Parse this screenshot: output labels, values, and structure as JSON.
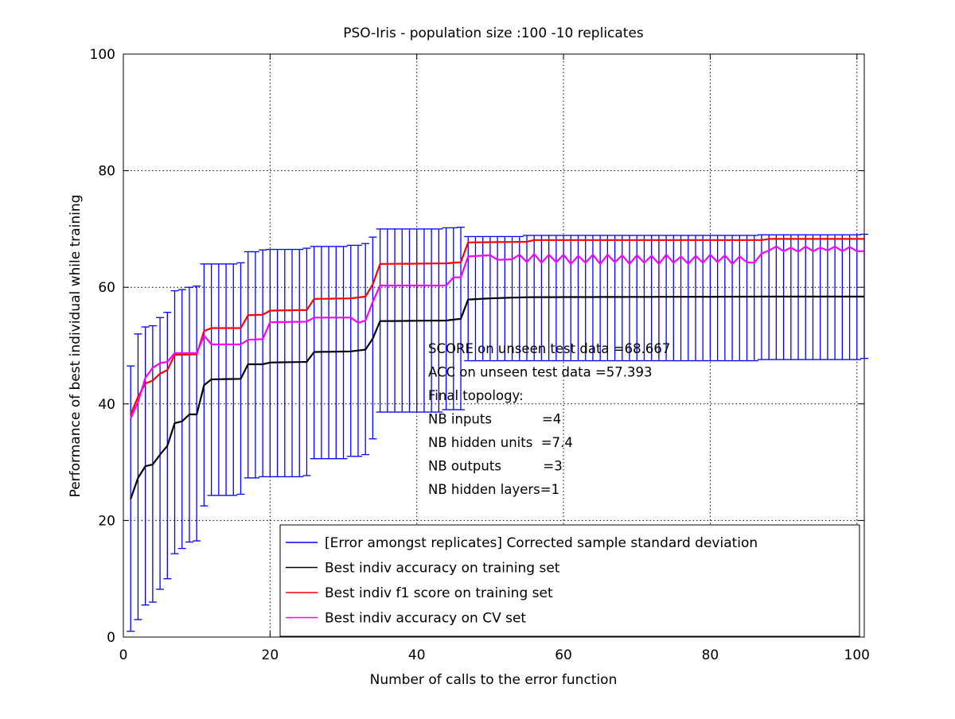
{
  "chart_data": {
    "type": "line",
    "title": "PSO-Iris - population size :100 -10 replicates",
    "xlabel": "Number of calls to the error function",
    "ylabel": "Performance of best individual while training",
    "xlim": [
      0,
      101
    ],
    "ylim": [
      0,
      100
    ],
    "xticks": [
      0,
      20,
      40,
      60,
      80,
      100
    ],
    "yticks": [
      0,
      20,
      40,
      60,
      80,
      100
    ],
    "grid": true,
    "legend_position": "bottom-right",
    "error_bars": {
      "name": "[Error amongst replicates] Corrected sample standard deviation",
      "color": "#0000ff",
      "keypoints": [
        [
          1,
          1,
          46.5
        ],
        [
          2,
          3,
          52
        ],
        [
          3,
          5.5,
          53.2
        ],
        [
          4,
          6,
          53.4
        ],
        [
          5,
          8.2,
          54.8
        ],
        [
          6,
          10,
          55.7
        ],
        [
          7,
          14.3,
          59.4
        ],
        [
          8,
          15.2,
          59.6
        ],
        [
          9,
          16.3,
          60
        ],
        [
          10,
          16.5,
          60.2
        ],
        [
          11,
          22.5,
          64
        ],
        [
          12,
          24.3,
          64
        ],
        [
          16,
          24.5,
          64.2
        ],
        [
          17,
          27.3,
          66.1
        ],
        [
          19,
          27.5,
          66.4
        ],
        [
          20,
          27.5,
          66.5
        ],
        [
          25,
          27.7,
          66.7
        ],
        [
          26,
          30.6,
          67
        ],
        [
          31,
          31,
          67.2
        ],
        [
          33,
          31.3,
          67.5
        ],
        [
          34,
          34,
          68.6
        ],
        [
          35,
          38.6,
          70
        ],
        [
          44,
          39,
          70.2
        ],
        [
          46,
          39,
          70.3
        ],
        [
          47,
          47.4,
          68.7
        ],
        [
          55,
          47.4,
          68.9
        ],
        [
          87,
          47.6,
          69
        ],
        [
          101,
          47.8,
          69.1
        ]
      ]
    },
    "series": [
      {
        "name": "Best indiv accuracy on training set",
        "color": "#000000",
        "keypoints": [
          [
            1,
            23.7
          ],
          [
            2,
            27.3
          ],
          [
            3,
            29.3
          ],
          [
            4,
            29.6
          ],
          [
            5,
            31.3
          ],
          [
            6,
            32.8
          ],
          [
            7,
            36.7
          ],
          [
            8,
            37
          ],
          [
            9,
            38.2
          ],
          [
            10,
            38.2
          ],
          [
            11,
            43.2
          ],
          [
            12,
            44.2
          ],
          [
            16,
            44.3
          ],
          [
            17,
            46.8
          ],
          [
            19,
            46.8
          ],
          [
            20,
            47.1
          ],
          [
            25,
            47.2
          ],
          [
            26,
            48.9
          ],
          [
            31,
            49
          ],
          [
            33,
            49.3
          ],
          [
            34,
            51.2
          ],
          [
            35,
            54.2
          ],
          [
            44,
            54.3
          ],
          [
            46,
            54.6
          ],
          [
            47,
            57.9
          ],
          [
            50,
            58.1
          ],
          [
            55,
            58.3
          ],
          [
            87,
            58.4
          ],
          [
            101,
            58.4
          ]
        ]
      },
      {
        "name": "Best indiv f1 score on training set",
        "color": "#ff0000",
        "keypoints": [
          [
            1,
            38.2
          ],
          [
            2,
            41.2
          ],
          [
            3,
            43.5
          ],
          [
            4,
            44
          ],
          [
            5,
            45.2
          ],
          [
            6,
            45.8
          ],
          [
            7,
            48.4
          ],
          [
            10,
            48.5
          ],
          [
            11,
            52.5
          ],
          [
            12,
            53
          ],
          [
            16,
            53
          ],
          [
            17,
            55.2
          ],
          [
            19,
            55.3
          ],
          [
            20,
            56
          ],
          [
            25,
            56.1
          ],
          [
            26,
            58
          ],
          [
            31,
            58.1
          ],
          [
            33,
            58.4
          ],
          [
            34,
            60.5
          ],
          [
            35,
            64
          ],
          [
            44,
            64.1
          ],
          [
            46,
            64.3
          ],
          [
            47,
            67.7
          ],
          [
            55,
            67.8
          ],
          [
            56,
            68.1
          ],
          [
            87,
            68.1
          ],
          [
            88,
            68.3
          ],
          [
            101,
            68.3
          ]
        ]
      },
      {
        "name": "Best indiv accuracy on CV set",
        "color": "#ff00ff",
        "keypoints": [
          [
            1,
            37.5
          ],
          [
            2,
            40.3
          ],
          [
            3,
            44.5
          ],
          [
            4,
            46.2
          ],
          [
            5,
            47
          ],
          [
            6,
            47.2
          ],
          [
            7,
            48.7
          ],
          [
            10,
            48.7
          ],
          [
            11,
            51.7
          ],
          [
            12,
            50.2
          ],
          [
            16,
            50.2
          ],
          [
            17,
            51
          ],
          [
            19,
            51.1
          ],
          [
            20,
            54
          ],
          [
            25,
            54.1
          ],
          [
            26,
            54.8
          ],
          [
            31,
            54.8
          ],
          [
            32,
            53.9
          ],
          [
            33,
            54.3
          ],
          [
            34,
            57.5
          ],
          [
            35,
            60.3
          ],
          [
            44,
            60.3
          ],
          [
            45,
            61.7
          ],
          [
            46,
            61.7
          ],
          [
            47,
            65.3
          ],
          [
            50,
            65.5
          ],
          [
            51,
            64.7
          ],
          [
            53,
            64.8
          ],
          [
            54,
            65.6
          ],
          [
            55,
            64.3
          ],
          [
            56,
            65.7
          ],
          [
            57,
            64.2
          ],
          [
            58,
            65.6
          ],
          [
            59,
            64.3
          ],
          [
            60,
            65.6
          ],
          [
            61,
            64
          ],
          [
            62,
            65.4
          ],
          [
            63,
            64.2
          ],
          [
            64,
            65.6
          ],
          [
            65,
            64
          ],
          [
            66,
            65.6
          ],
          [
            67,
            64.3
          ],
          [
            68,
            65.5
          ],
          [
            69,
            64
          ],
          [
            70,
            65.5
          ],
          [
            71,
            64.2
          ],
          [
            72,
            65.4
          ],
          [
            73,
            64
          ],
          [
            74,
            65.6
          ],
          [
            75,
            64.2
          ],
          [
            76,
            65.3
          ],
          [
            77,
            64
          ],
          [
            78,
            65.4
          ],
          [
            79,
            64.2
          ],
          [
            80,
            65.6
          ],
          [
            81,
            64.3
          ],
          [
            82,
            65.5
          ],
          [
            83,
            64
          ],
          [
            84,
            65.3
          ],
          [
            85,
            64.3
          ],
          [
            86,
            64.2
          ],
          [
            87,
            65.8
          ],
          [
            88,
            66.3
          ],
          [
            89,
            67
          ],
          [
            90,
            66.2
          ],
          [
            91,
            66.8
          ],
          [
            92,
            66.1
          ],
          [
            93,
            67
          ],
          [
            94,
            66.2
          ],
          [
            95,
            66.8
          ],
          [
            96,
            66.3
          ],
          [
            97,
            67
          ],
          [
            98,
            66.2
          ],
          [
            99,
            66.9
          ],
          [
            100,
            66.2
          ],
          [
            101,
            66.2
          ]
        ]
      }
    ],
    "annotations": [
      "SCORE on unseen test data =68.667",
      "ACC on unseen test data =57.393",
      "Final topology:",
      "NB inputs            =4",
      "NB hidden units  =7.4",
      "NB outputs          =3",
      "NB hidden layers=1"
    ]
  }
}
